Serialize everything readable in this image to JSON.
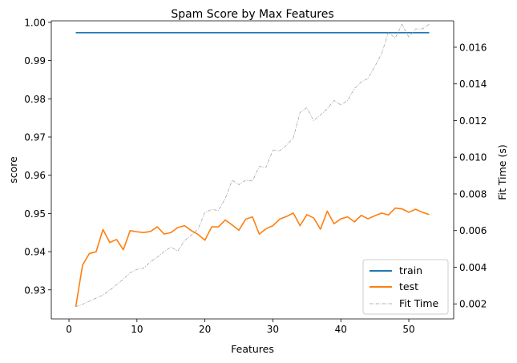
{
  "chart_data": {
    "type": "line",
    "title": "Spam Score by Max Features",
    "xlabel": "Features",
    "ylabel": "score",
    "y2label": "Fit Time (s)",
    "xlim": [
      -2.6,
      56.6
    ],
    "ylim": [
      0.9224,
      1.0004
    ],
    "y2lim": [
      0.00118,
      0.01744
    ],
    "xticks": [
      0,
      10,
      20,
      30,
      40,
      50
    ],
    "yticks": [
      0.93,
      0.94,
      0.95,
      0.96,
      0.97,
      0.98,
      0.99,
      1.0
    ],
    "ytick_labels": [
      "0.93",
      "0.94",
      "0.95",
      "0.96",
      "0.97",
      "0.98",
      "0.99",
      "1.00"
    ],
    "y2ticks": [
      0.002,
      0.004,
      0.006,
      0.008,
      0.01,
      0.012,
      0.014,
      0.016
    ],
    "y2tick_labels": [
      "0.002",
      "0.004",
      "0.006",
      "0.008",
      "0.010",
      "0.012",
      "0.014",
      "0.016"
    ],
    "grid": false,
    "legend_position": "lower-right",
    "x": [
      1,
      2,
      3,
      4,
      5,
      6,
      7,
      8,
      9,
      10,
      11,
      12,
      13,
      14,
      15,
      16,
      17,
      18,
      19,
      20,
      21,
      22,
      23,
      24,
      25,
      26,
      27,
      28,
      29,
      30,
      31,
      32,
      33,
      34,
      35,
      36,
      37,
      38,
      39,
      40,
      41,
      42,
      43,
      44,
      45,
      46,
      47,
      48,
      49,
      50,
      51,
      52,
      53
    ],
    "series": [
      {
        "name": "train",
        "axis": "left",
        "color": "#1f77b4",
        "style": "solid",
        "values": [
          0.9973,
          0.9973,
          0.9973,
          0.9973,
          0.9973,
          0.9973,
          0.9973,
          0.9973,
          0.9973,
          0.9973,
          0.9973,
          0.9973,
          0.9973,
          0.9973,
          0.9973,
          0.9973,
          0.9973,
          0.9973,
          0.9973,
          0.9973,
          0.9973,
          0.9973,
          0.9973,
          0.9973,
          0.9973,
          0.9973,
          0.9973,
          0.9973,
          0.9973,
          0.9973,
          0.9973,
          0.9973,
          0.9973,
          0.9973,
          0.9973,
          0.9973,
          0.9973,
          0.9973,
          0.9973,
          0.9973,
          0.9973,
          0.9973,
          0.9973,
          0.9973,
          0.9973,
          0.9973,
          0.9973,
          0.9973,
          0.9973,
          0.9973,
          0.9973,
          0.9973,
          0.9973
        ]
      },
      {
        "name": "test",
        "axis": "left",
        "color": "#ff7f0e",
        "style": "solid",
        "values": [
          0.9256,
          0.9365,
          0.9395,
          0.94,
          0.9458,
          0.9424,
          0.9432,
          0.9405,
          0.9455,
          0.9452,
          0.945,
          0.9453,
          0.9465,
          0.9446,
          0.945,
          0.9463,
          0.9468,
          0.9455,
          0.9445,
          0.943,
          0.9465,
          0.9465,
          0.9483,
          0.947,
          0.9456,
          0.9485,
          0.9491,
          0.9446,
          0.946,
          0.9468,
          0.9485,
          0.9492,
          0.9501,
          0.9468,
          0.9497,
          0.9488,
          0.9459,
          0.9506,
          0.9473,
          0.9486,
          0.9491,
          0.9478,
          0.9495,
          0.9486,
          0.9494,
          0.9501,
          0.9496,
          0.9514,
          0.9512,
          0.9503,
          0.9511,
          0.9503,
          0.9497
        ]
      },
      {
        "name": "Fit Time",
        "axis": "right",
        "color": "#999999",
        "style": "dashdot",
        "values": [
          0.00185,
          0.00198,
          0.00215,
          0.00232,
          0.00248,
          0.00275,
          0.00305,
          0.00335,
          0.0037,
          0.00388,
          0.00395,
          0.0043,
          0.00455,
          0.00485,
          0.0051,
          0.00488,
          0.00545,
          0.00575,
          0.00608,
          0.007,
          0.00715,
          0.0071,
          0.00775,
          0.00875,
          0.0085,
          0.00875,
          0.0087,
          0.0095,
          0.00945,
          0.0104,
          0.01035,
          0.01065,
          0.01105,
          0.01245,
          0.0127,
          0.012,
          0.0123,
          0.01265,
          0.0131,
          0.01285,
          0.0131,
          0.01375,
          0.0141,
          0.0143,
          0.01495,
          0.01565,
          0.0168,
          0.0165,
          0.01725,
          0.01655,
          0.017,
          0.017,
          0.01725
        ]
      }
    ]
  }
}
